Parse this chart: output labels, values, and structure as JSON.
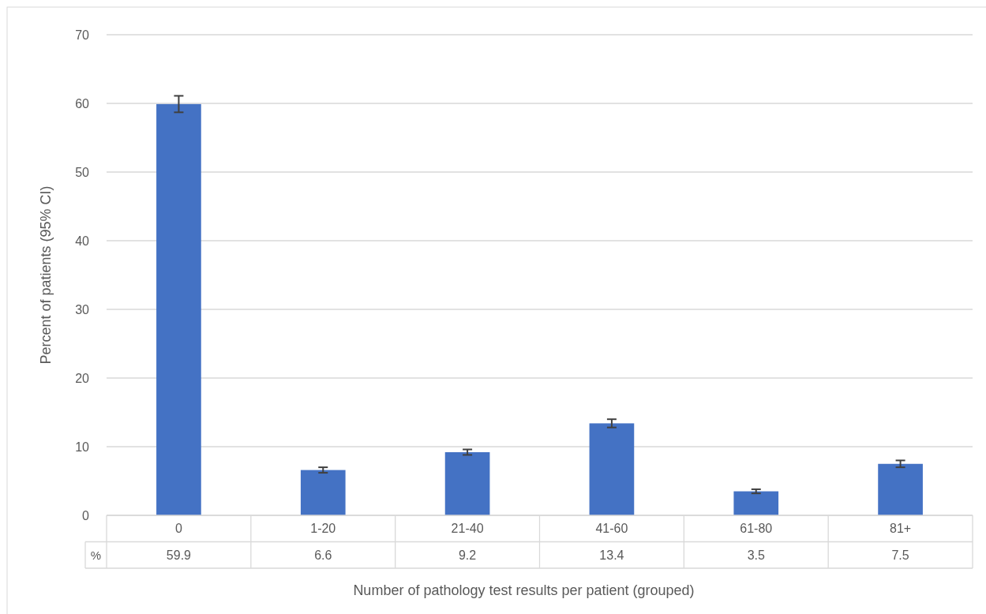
{
  "chart_data": {
    "type": "bar",
    "xlabel": "Number of pathology test results per patient (grouped)",
    "ylabel": "Percent of patients (95% CI)",
    "categories": [
      "0",
      "1-20",
      "21-40",
      "41-60",
      "61-80",
      "81+"
    ],
    "values": [
      59.9,
      6.6,
      9.2,
      13.4,
      3.5,
      7.5
    ],
    "errors": [
      1.2,
      0.4,
      0.4,
      0.6,
      0.3,
      0.5
    ],
    "color": "#4472c4",
    "ylim": [
      0,
      70
    ],
    "yticks": [
      0,
      10,
      20,
      30,
      40,
      50,
      60,
      70
    ],
    "grid": "y",
    "data_labels": true,
    "annotations": [
      "%"
    ]
  }
}
